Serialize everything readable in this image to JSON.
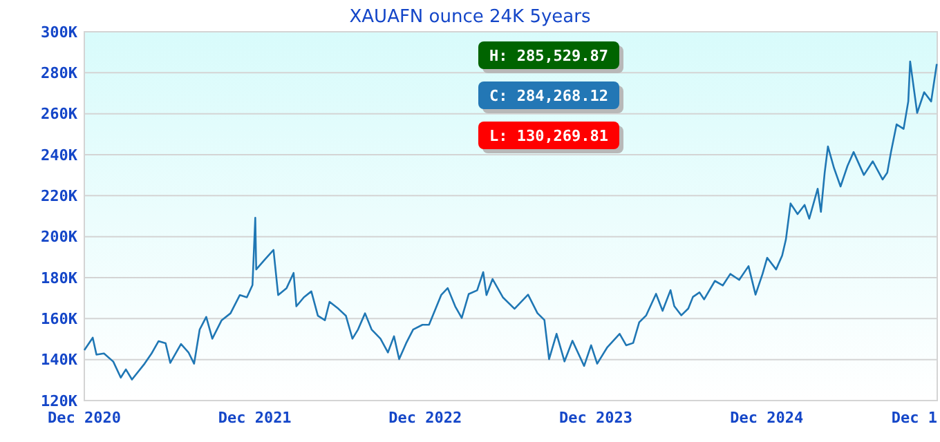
{
  "chart_data": {
    "type": "line",
    "title": "XAUAFN ounce 24K 5years",
    "x": [
      "2020-12-01",
      "2020-12-19",
      "2020-12-27",
      "2021-01-12",
      "2021-02-01",
      "2021-02-17",
      "2021-02-28",
      "2021-03-13",
      "2021-04-09",
      "2021-04-24",
      "2021-05-09",
      "2021-05-24",
      "2021-06-03",
      "2021-06-26",
      "2021-07-12",
      "2021-07-24",
      "2021-08-05",
      "2021-08-19",
      "2021-09-01",
      "2021-09-21",
      "2021-10-10",
      "2021-10-30",
      "2021-11-14",
      "2021-11-26",
      "2021-12-02",
      "2021-12-04",
      "2021-12-23",
      "2022-01-10",
      "2022-01-20",
      "2022-02-07",
      "2022-02-22",
      "2022-02-28",
      "2022-03-16",
      "2022-04-01",
      "2022-04-15",
      "2022-04-30",
      "2022-05-10",
      "2022-05-29",
      "2022-06-14",
      "2022-06-28",
      "2022-07-10",
      "2022-07-25",
      "2022-08-08",
      "2022-08-27",
      "2022-09-12",
      "2022-09-25",
      "2022-10-06",
      "2022-10-21",
      "2022-11-05",
      "2022-11-25",
      "2022-12-09",
      "2023-01-04",
      "2023-01-18",
      "2023-02-03",
      "2023-02-17",
      "2023-03-04",
      "2023-03-22",
      "2023-04-04",
      "2023-04-11",
      "2023-04-24",
      "2023-05-16",
      "2023-06-10",
      "2023-07-09",
      "2023-07-29",
      "2023-08-13",
      "2023-08-23",
      "2023-09-08",
      "2023-09-25",
      "2023-10-12",
      "2023-11-06",
      "2023-11-21",
      "2023-12-04",
      "2023-12-25",
      "2024-01-21",
      "2024-02-04",
      "2024-02-19",
      "2024-03-03",
      "2024-03-18",
      "2024-04-08",
      "2024-04-22",
      "2024-05-09",
      "2024-05-17",
      "2024-06-01",
      "2024-06-16",
      "2024-06-26",
      "2024-07-10",
      "2024-07-20",
      "2024-08-12",
      "2024-08-29",
      "2024-09-14",
      "2024-10-03",
      "2024-10-23",
      "2024-11-07",
      "2024-11-22",
      "2024-12-02",
      "2024-12-21",
      "2025-01-03",
      "2025-01-11",
      "2025-01-21",
      "2025-02-05",
      "2025-02-20",
      "2025-03-02",
      "2025-03-20",
      "2025-03-27",
      "2025-04-04",
      "2025-04-11",
      "2025-04-24",
      "2025-05-08",
      "2025-05-23",
      "2025-06-05",
      "2025-06-27",
      "2025-07-16",
      "2025-08-06",
      "2025-08-16",
      "2025-08-24",
      "2025-09-05",
      "2025-09-20",
      "2025-09-30",
      "2025-10-04",
      "2025-10-19",
      "2025-11-03",
      "2025-11-18",
      "2025-11-30"
    ],
    "series": [
      {
        "color": "#1f77b4",
        "values": [
          144.6,
          150.7,
          142.4,
          143,
          139,
          131.2,
          135.2,
          130.27,
          138,
          143,
          149,
          148,
          138.4,
          147.6,
          143.5,
          138,
          154.7,
          160.8,
          150.2,
          159.2,
          162.6,
          171.5,
          170.4,
          176.4,
          209.2,
          184,
          189,
          193.5,
          171.5,
          174.9,
          182.3,
          166,
          170.4,
          173.3,
          161.4,
          159.2,
          168.2,
          164.8,
          161.4,
          150.2,
          154.7,
          162.6,
          154.7,
          150.2,
          143.5,
          151.4,
          140.2,
          148,
          154.7,
          157,
          157,
          171.5,
          174.9,
          166,
          160.3,
          172,
          173.8,
          182.7,
          171.5,
          179.3,
          170.4,
          164.8,
          171.7,
          162.7,
          159.3,
          140.2,
          152.6,
          139.1,
          149.2,
          136.9,
          147,
          138,
          145.8,
          152.6,
          147,
          148.1,
          158.2,
          161.6,
          172.1,
          163.8,
          173.9,
          166.1,
          161.6,
          164.9,
          170.6,
          172.8,
          169.4,
          178.4,
          176.2,
          181.8,
          178.9,
          185.6,
          171.7,
          181.8,
          189.7,
          184,
          190.8,
          198.6,
          216.2,
          211,
          215.5,
          208.8,
          223.4,
          212.1,
          231.2,
          244,
          233.5,
          224.5,
          234.6,
          241.3,
          230.1,
          236.8,
          227.9,
          231.2,
          241.3,
          254.8,
          252.6,
          266,
          285.53,
          260.4,
          270.5,
          266,
          284.27
        ]
      }
    ],
    "xlim": [
      "2020-12-01",
      "2025-12-01"
    ],
    "xticks": [
      {
        "value": "2020-12-01",
        "label": "Dec 2020"
      },
      {
        "value": "2021-12-01",
        "label": "Dec 2021"
      },
      {
        "value": "2022-12-01",
        "label": "Dec 2022"
      },
      {
        "value": "2023-12-01",
        "label": "Dec 2023"
      },
      {
        "value": "2024-12-01",
        "label": "Dec 2024"
      },
      {
        "value": "2025-12-01",
        "label": "Dec 1"
      }
    ],
    "ylim": [
      120,
      300
    ],
    "yticks": [
      {
        "value": 120,
        "label": "120K"
      },
      {
        "value": 140,
        "label": "140K"
      },
      {
        "value": 160,
        "label": "160K"
      },
      {
        "value": 180,
        "label": "180K"
      },
      {
        "value": 200,
        "label": "200K"
      },
      {
        "value": 220,
        "label": "220K"
      },
      {
        "value": 240,
        "label": "240K"
      },
      {
        "value": 260,
        "label": "260K"
      },
      {
        "value": 280,
        "label": "280K"
      },
      {
        "value": 300,
        "label": "300K"
      }
    ],
    "grid": "y",
    "line_style": "solid",
    "annotations": [
      "H: 285,529.87",
      "C: 284,268.12",
      "L: 130,269.81"
    ]
  }
}
